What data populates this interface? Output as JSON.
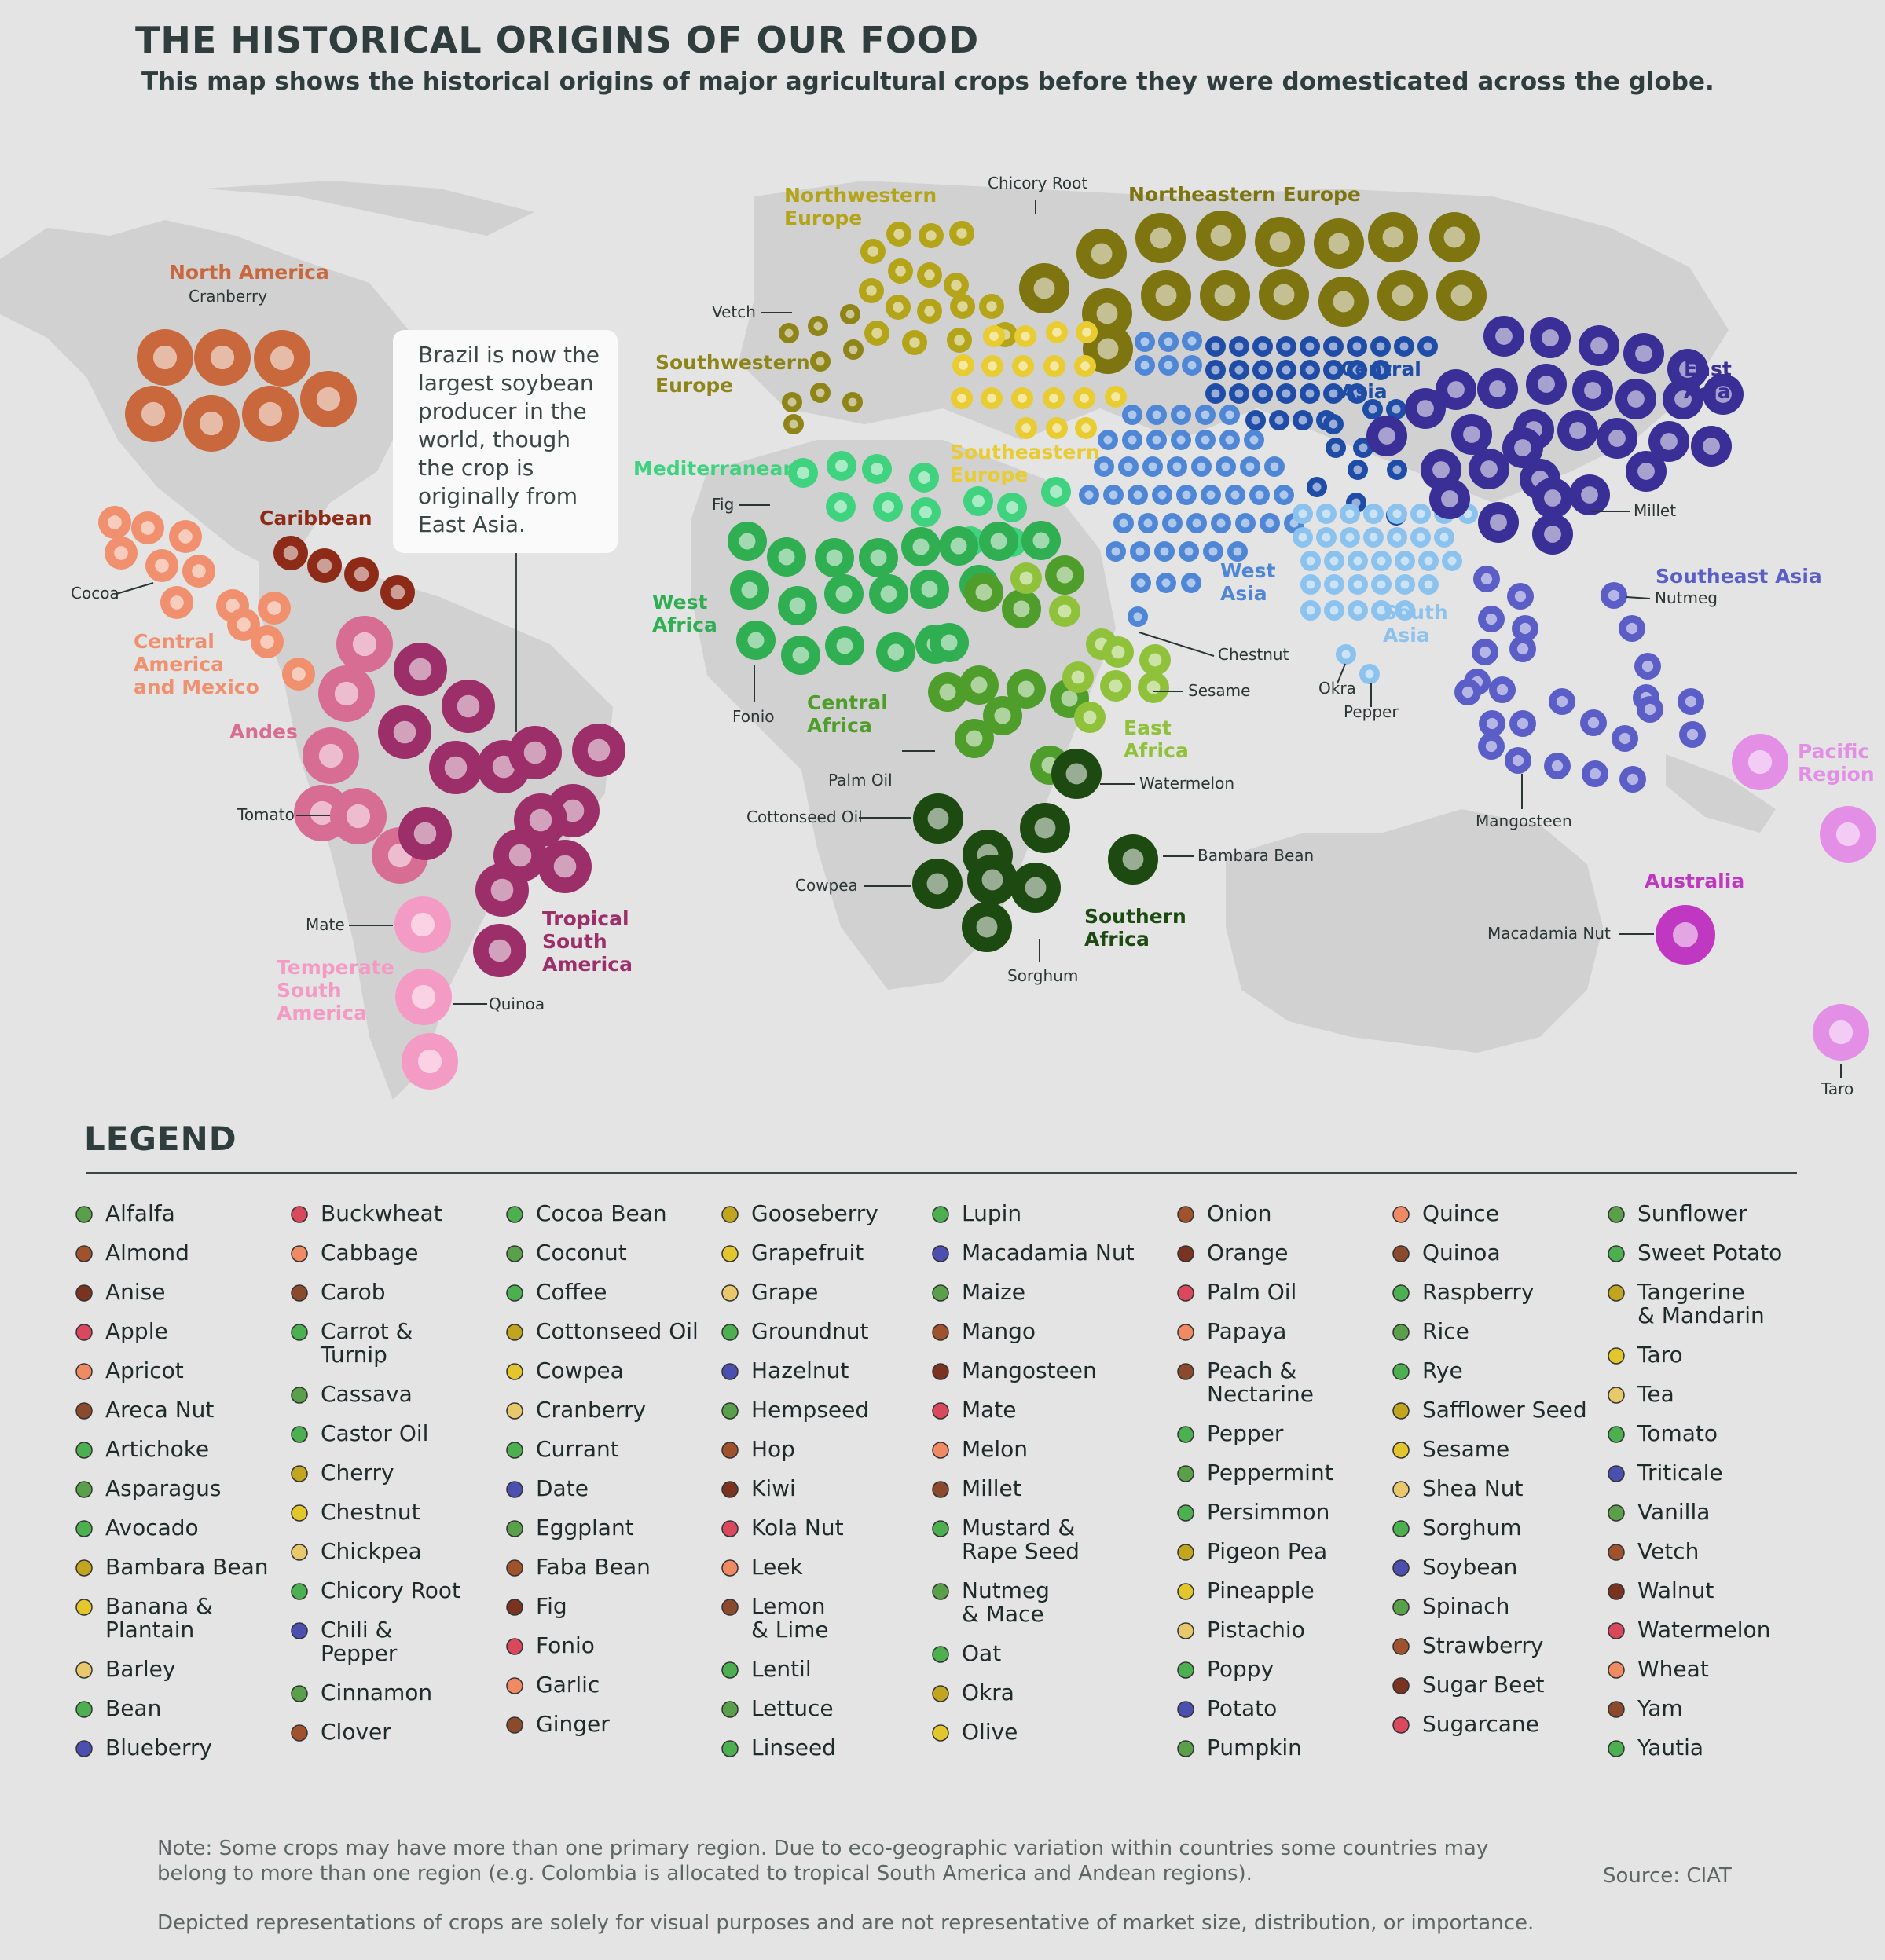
{
  "title": "THE HISTORICAL ORIGINS OF OUR FOOD",
  "subtitle": "This map shows the historical origins of major agricultural crops before they were domesticated across the globe.",
  "callout": "Brazil is now the largest soybean producer in the world, though the crop is originally from East Asia.",
  "colors": {
    "background": "#e4e4e4",
    "land": "#d1d1d1",
    "north_america": "#c8683c",
    "caribbean": "#8e2a18",
    "central_america": "#f0906f",
    "andes": "#d86d94",
    "tropical_south_america": "#9c2f6a",
    "temperate_south_america": "#f39bc4",
    "northwestern_europe": "#b4a41a",
    "northeastern_europe": "#7e7410",
    "southwestern_europe": "#8e8418",
    "southeastern_europe": "#e8cc32",
    "mediterranean": "#3fd27f",
    "west_africa": "#2fae52",
    "central_africa": "#4f9e2c",
    "east_africa": "#8fc23a",
    "southern_africa": "#1c4a10",
    "west_asia": "#4f87d6",
    "central_asia": "#1f4ca7",
    "south_asia": "#8cc2ee",
    "east_asia": "#3a2f96",
    "southeast_asia": "#5c5ec8",
    "pacific_region": "#e38fe6",
    "australia": "#c038c2"
  },
  "regions": [
    {
      "name": "North America",
      "color": "#c8683c"
    },
    {
      "name": "Caribbean",
      "color": "#8e2a18"
    },
    {
      "name": "Central\nAmerica\nand Mexico",
      "color": "#f0906f"
    },
    {
      "name": "Andes",
      "color": "#d86d94"
    },
    {
      "name": "Tropical\nSouth\nAmerica",
      "color": "#9c2f6a"
    },
    {
      "name": "Temperate\nSouth\nAmerica",
      "color": "#f39bc4"
    },
    {
      "name": "Northwestern\nEurope",
      "color": "#b4a41a"
    },
    {
      "name": "Northeastern Europe",
      "color": "#7e7410"
    },
    {
      "name": "Southwestern\nEurope",
      "color": "#8e8418"
    },
    {
      "name": "Southeastern\nEurope",
      "color": "#e8cc32"
    },
    {
      "name": "Mediterranean",
      "color": "#3fd27f"
    },
    {
      "name": "West\nAfrica",
      "color": "#2fae52"
    },
    {
      "name": "Central\nAfrica",
      "color": "#4f9e2c"
    },
    {
      "name": "East\nAfrica",
      "color": "#8fc23a"
    },
    {
      "name": "Southern\nAfrica",
      "color": "#1c4a10"
    },
    {
      "name": "West\nAsia",
      "color": "#4f87d6"
    },
    {
      "name": "Central\nAsia",
      "color": "#1f4ca7"
    },
    {
      "name": "South\nAsia",
      "color": "#8cc2ee"
    },
    {
      "name": "East\nAsia",
      "color": "#3a2f96"
    },
    {
      "name": "Southeast Asia",
      "color": "#5c5ec8"
    },
    {
      "name": "Pacific\nRegion",
      "color": "#e38fe6"
    },
    {
      "name": "Australia",
      "color": "#c038c2"
    }
  ],
  "crop_labels": [
    "Cranberry",
    "Cocoa",
    "Tomato",
    "Mate",
    "Quinoa",
    "Chicory Root",
    "Vetch",
    "Fig",
    "Fonio",
    "Palm Oil",
    "Cottonseed Oil",
    "Cowpea",
    "Sorghum",
    "Watermelon",
    "Bambara Bean",
    "Chestnut",
    "Sesame",
    "Okra",
    "Pepper",
    "Millet",
    "Nutmeg",
    "Mangosteen",
    "Macadamia Nut",
    "Taro"
  ],
  "legend": {
    "title": "LEGEND",
    "columns": [
      [
        "Alfalfa",
        "Almond",
        "Anise",
        "Apple",
        "Apricot",
        "Areca Nut",
        "Artichoke",
        "Asparagus",
        "Avocado",
        "Bambara Bean",
        "Banana &\nPlantain",
        "Barley",
        "Bean",
        "Blueberry"
      ],
      [
        "Buckwheat",
        "Cabbage",
        "Carob",
        "Carrot &\nTurnip",
        "Cassava",
        "Castor Oil",
        "Cherry",
        "Chestnut",
        "Chickpea",
        "Chicory Root",
        "Chili &\nPepper",
        "Cinnamon",
        "Clover"
      ],
      [
        "Cocoa Bean",
        "Coconut",
        "Coffee",
        "Cottonseed Oil",
        "Cowpea",
        "Cranberry",
        "Currant",
        "Date",
        "Eggplant",
        "Faba Bean",
        "Fig",
        "Fonio",
        "Garlic",
        "Ginger"
      ],
      [
        "Gooseberry",
        "Grapefruit",
        "Grape",
        "Groundnut",
        "Hazelnut",
        "Hempseed",
        "Hop",
        "Kiwi",
        "Kola Nut",
        "Leek",
        "Lemon\n& Lime",
        "Lentil",
        "Lettuce",
        "Linseed"
      ],
      [
        "Lupin",
        "Macadamia Nut",
        "Maize",
        "Mango",
        "Mangosteen",
        "Mate",
        "Melon",
        "Millet",
        "Mustard &\nRape Seed",
        "Nutmeg\n& Mace",
        "Oat",
        "Okra",
        "Olive"
      ],
      [
        "Onion",
        "Orange",
        "Palm Oil",
        "Papaya",
        "Peach &\nNectarine",
        "Pepper",
        "Peppermint",
        "Persimmon",
        "Pigeon Pea",
        "Pineapple",
        "Pistachio",
        "Poppy",
        "Potato",
        "Pumpkin"
      ],
      [
        "Quince",
        "Quinoa",
        "Raspberry",
        "Rice",
        "Rye",
        "Safflower Seed",
        "Sesame",
        "Shea Nut",
        "Sorghum",
        "Soybean",
        "Spinach",
        "Strawberry",
        "Sugar Beet",
        "Sugarcane"
      ],
      [
        "Sunflower",
        "Sweet Potato",
        "Tangerine\n& Mandarin",
        "Taro",
        "Tea",
        "Tomato",
        "Triticale",
        "Vanilla",
        "Vetch",
        "Walnut",
        "Watermelon",
        "Wheat",
        "Yam",
        "Yautia"
      ]
    ]
  },
  "note": "Note: Some crops may have more than one primary region. Due to eco-geographic variation within countries some countries may belong to more than one region (e.g. Colombia is allocated to tropical South America and Andean regions).",
  "source": "Source: CIAT",
  "disclaimer": "Depicted representations of crops are solely for visual purposes and are not representative of market size, distribution, or importance."
}
